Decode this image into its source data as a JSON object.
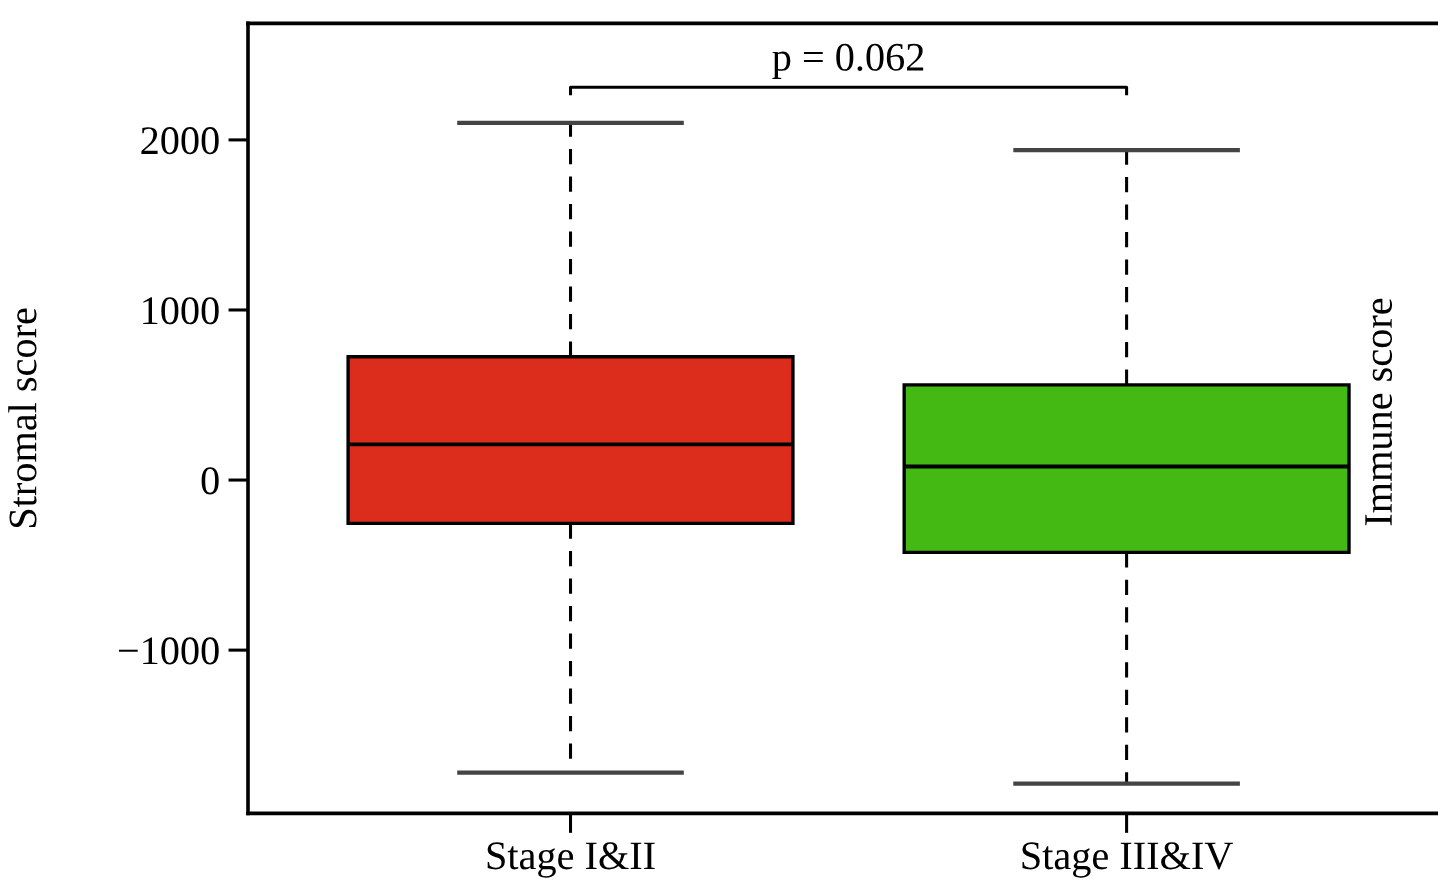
{
  "chart_data": {
    "type": "box",
    "categories": [
      "Stage I&II",
      "Stage III&IV"
    ],
    "boxes": [
      {
        "low": -1720,
        "q1": -255,
        "median": 210,
        "q3": 725,
        "high": 2100
      },
      {
        "low": -1785,
        "q1": -425,
        "median": 80,
        "q3": 560,
        "high": 1940
      }
    ],
    "colors": [
      "#dc2d1c",
      "#44b913"
    ],
    "ylabel": "Stromal score",
    "ylim": [
      -1960,
      2685
    ],
    "yticks": [
      -1000,
      0,
      1000,
      2000
    ],
    "annotations": [
      "p = 0.062",
      "Immune score"
    ]
  }
}
